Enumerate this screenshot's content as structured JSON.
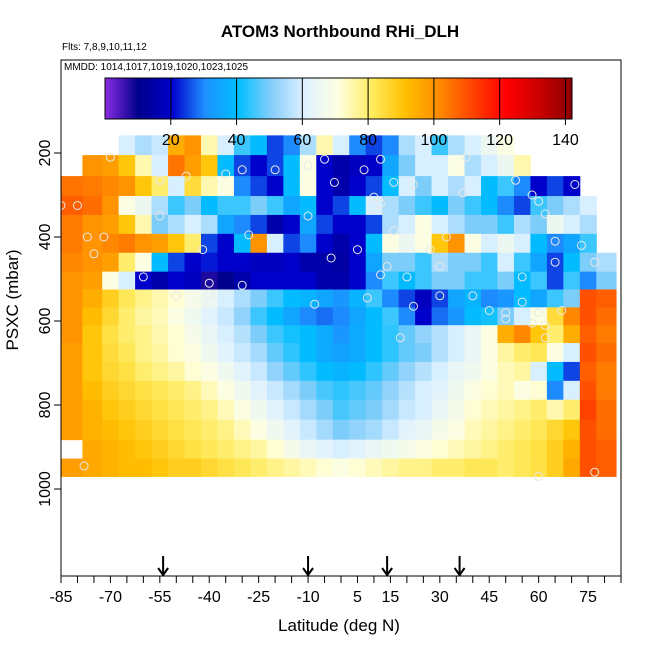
{
  "figure": {
    "title": "ATOM3 Northbound RHi_DLH",
    "flights_note": "Flts: 7,8,9,10,11,12",
    "dates_note": "MMDD: 1014,1017,1019,1020,1023,1025"
  },
  "chart_data": {
    "type": "heatmap",
    "title": "ATOM3 Northbound RHi_DLH",
    "xlabel": "Latitude (deg N)",
    "ylabel": "PSXC (mbar)",
    "x_ticks": [
      "-85",
      "-70",
      "-55",
      "-40",
      "-25",
      "-10",
      "5",
      "15",
      "30",
      "45",
      "60",
      "75"
    ],
    "y_ticks": [
      "200",
      "400",
      "600",
      "800",
      "1000"
    ],
    "xlim": [
      -85,
      85
    ],
    "ylim": [
      1000,
      0
    ],
    "y_reversed": true,
    "colorbar": {
      "ticks": [
        "20",
        "40",
        "60",
        "80",
        "100",
        "120",
        "140"
      ],
      "range": [
        0,
        142
      ],
      "colors": [
        "#8a2be2",
        "#00008b",
        "#0000cd",
        "#1e90ff",
        "#00bfff",
        "#87cefa",
        "#e0f2ff",
        "#ffffe0",
        "#ffec60",
        "#ffc000",
        "#ff8c00",
        "#ff4500",
        "#ff0000",
        "#cc0000",
        "#8b0000"
      ]
    },
    "arrow_latitudes": [
      -54,
      -10,
      14,
      36
    ],
    "pressure_levels": [
      180,
      230,
      280,
      325,
      370,
      415,
      460,
      505,
      545,
      590,
      630,
      675,
      720,
      765,
      810,
      860,
      905,
      950
    ],
    "latitudes": [
      -82,
      -75,
      -70,
      -65,
      -60,
      -55,
      -50,
      -45,
      -40,
      -35,
      -30,
      -25,
      -20,
      -15,
      -10,
      -5,
      0,
      5,
      10,
      15,
      20,
      25,
      30,
      35,
      40,
      45,
      50,
      55,
      60,
      65,
      70,
      75,
      80
    ],
    "rhi_matrix": [
      [
        null,
        null,
        null,
        60,
        55,
        58,
        95,
        100,
        75,
        60,
        45,
        40,
        25,
        30,
        55,
        75,
        60,
        30,
        25,
        30,
        55,
        60,
        45,
        55,
        60,
        65,
        70,
        null,
        null,
        null,
        null,
        null,
        null
      ],
      [
        null,
        100,
        98,
        90,
        75,
        60,
        105,
        98,
        90,
        40,
        25,
        20,
        25,
        40,
        70,
        20,
        15,
        18,
        20,
        35,
        50,
        60,
        60,
        70,
        55,
        60,
        65,
        75,
        null,
        null,
        null,
        null,
        null
      ],
      [
        105,
        104,
        102,
        100,
        90,
        80,
        60,
        85,
        75,
        70,
        30,
        25,
        20,
        40,
        70,
        20,
        15,
        20,
        25,
        40,
        60,
        50,
        60,
        55,
        60,
        40,
        45,
        30,
        20,
        25,
        20,
        null,
        null
      ],
      [
        108,
        106,
        100,
        70,
        65,
        55,
        45,
        50,
        40,
        45,
        45,
        50,
        45,
        35,
        40,
        20,
        25,
        40,
        60,
        55,
        50,
        45,
        40,
        50,
        45,
        40,
        30,
        25,
        45,
        50,
        55,
        60,
        null
      ],
      [
        104,
        100,
        98,
        90,
        75,
        50,
        55,
        60,
        55,
        35,
        30,
        25,
        15,
        20,
        35,
        25,
        20,
        20,
        25,
        55,
        60,
        70,
        60,
        55,
        50,
        50,
        45,
        55,
        50,
        65,
        60,
        55,
        null
      ],
      [
        104,
        100,
        102,
        104,
        100,
        98,
        90,
        80,
        25,
        20,
        40,
        100,
        60,
        25,
        30,
        20,
        15,
        20,
        40,
        70,
        65,
        70,
        90,
        100,
        70,
        60,
        65,
        60,
        40,
        30,
        35,
        45,
        null
      ],
      [
        102,
        100,
        98,
        80,
        70,
        40,
        25,
        20,
        22,
        20,
        20,
        18,
        18,
        20,
        15,
        15,
        14,
        20,
        35,
        50,
        50,
        45,
        55,
        50,
        50,
        45,
        60,
        45,
        35,
        25,
        40,
        50,
        55
      ],
      [
        100,
        98,
        70,
        60,
        20,
        15,
        20,
        18,
        8,
        10,
        15,
        20,
        20,
        20,
        20,
        15,
        15,
        20,
        30,
        45,
        40,
        45,
        50,
        50,
        45,
        45,
        50,
        40,
        45,
        25,
        45,
        30,
        50
      ],
      [
        100,
        95,
        88,
        82,
        78,
        75,
        72,
        68,
        65,
        60,
        55,
        50,
        45,
        40,
        38,
        35,
        32,
        38,
        45,
        30,
        25,
        18,
        25,
        35,
        38,
        30,
        32,
        40,
        35,
        45,
        50,
        110,
        108
      ],
      [
        100,
        92,
        86,
        80,
        76,
        74,
        70,
        66,
        62,
        58,
        52,
        45,
        40,
        35,
        30,
        28,
        30,
        35,
        40,
        45,
        30,
        20,
        28,
        32,
        40,
        42,
        50,
        60,
        70,
        85,
        102,
        110,
        106
      ],
      [
        100,
        90,
        84,
        80,
        78,
        75,
        72,
        68,
        64,
        60,
        56,
        50,
        45,
        42,
        40,
        36,
        32,
        36,
        40,
        44,
        48,
        52,
        56,
        60,
        64,
        70,
        95,
        102,
        90,
        80,
        95,
        108,
        104
      ],
      [
        98,
        90,
        85,
        82,
        78,
        76,
        72,
        70,
        66,
        62,
        58,
        54,
        48,
        44,
        40,
        36,
        34,
        36,
        40,
        44,
        48,
        50,
        56,
        60,
        64,
        70,
        76,
        80,
        82,
        70,
        60,
        110,
        106
      ],
      [
        98,
        90,
        86,
        84,
        80,
        78,
        76,
        72,
        70,
        66,
        62,
        58,
        52,
        48,
        44,
        40,
        38,
        40,
        44,
        48,
        52,
        56,
        60,
        64,
        66,
        70,
        74,
        76,
        60,
        40,
        25,
        108,
        104
      ],
      [
        98,
        92,
        88,
        86,
        84,
        82,
        80,
        78,
        74,
        70,
        66,
        62,
        58,
        54,
        50,
        46,
        44,
        46,
        48,
        52,
        56,
        60,
        62,
        66,
        70,
        72,
        74,
        70,
        72,
        30,
        60,
        110,
        104
      ],
      [
        98,
        94,
        90,
        88,
        86,
        84,
        82,
        80,
        78,
        74,
        70,
        66,
        62,
        58,
        54,
        50,
        46,
        48,
        50,
        54,
        58,
        60,
        64,
        68,
        72,
        74,
        76,
        78,
        80,
        75,
        80,
        112,
        106
      ],
      [
        98,
        94,
        92,
        90,
        88,
        86,
        84,
        82,
        80,
        78,
        74,
        70,
        66,
        62,
        58,
        54,
        50,
        52,
        54,
        58,
        62,
        64,
        68,
        70,
        74,
        76,
        78,
        80,
        82,
        86,
        90,
        110,
        106
      ],
      [
        null,
        96,
        94,
        92,
        90,
        88,
        86,
        84,
        82,
        80,
        78,
        76,
        72,
        68,
        64,
        62,
        60,
        62,
        64,
        66,
        68,
        70,
        72,
        74,
        76,
        78,
        80,
        82,
        84,
        88,
        94,
        110,
        108
      ],
      [
        98,
        96,
        94,
        92,
        92,
        90,
        88,
        88,
        86,
        84,
        82,
        80,
        78,
        76,
        74,
        72,
        70,
        72,
        74,
        76,
        78,
        78,
        80,
        80,
        82,
        82,
        80,
        82,
        84,
        88,
        96,
        110,
        108
      ]
    ],
    "sample_points": [
      {
        "lat": -70,
        "p": 210
      },
      {
        "lat": -55,
        "p": 265
      },
      {
        "lat": -47,
        "p": 255
      },
      {
        "lat": -35,
        "p": 250
      },
      {
        "lat": -30,
        "p": 240
      },
      {
        "lat": -20,
        "p": 240
      },
      {
        "lat": -10,
        "p": 230
      },
      {
        "lat": -5,
        "p": 215
      },
      {
        "lat": 7,
        "p": 240
      },
      {
        "lat": 12,
        "p": 215
      },
      {
        "lat": 38,
        "p": 210
      },
      {
        "lat": 10,
        "p": 305
      },
      {
        "lat": -2,
        "p": 270
      },
      {
        "lat": 16,
        "p": 270
      },
      {
        "lat": 22,
        "p": 275
      },
      {
        "lat": 37,
        "p": 295
      },
      {
        "lat": 53,
        "p": 265
      },
      {
        "lat": 58,
        "p": 300
      },
      {
        "lat": 71,
        "p": 275
      },
      {
        "lat": -85,
        "p": 325
      },
      {
        "lat": -80,
        "p": 325
      },
      {
        "lat": -55,
        "p": 350
      },
      {
        "lat": -10,
        "p": 350
      },
      {
        "lat": 12,
        "p": 320
      },
      {
        "lat": 16,
        "p": 385
      },
      {
        "lat": 32,
        "p": 400
      },
      {
        "lat": 60,
        "p": 315
      },
      {
        "lat": 62,
        "p": 345
      },
      {
        "lat": -77,
        "p": 400
      },
      {
        "lat": -72,
        "p": 400
      },
      {
        "lat": -28,
        "p": 395
      },
      {
        "lat": -42,
        "p": 430
      },
      {
        "lat": 5,
        "p": 430
      },
      {
        "lat": 27,
        "p": 430
      },
      {
        "lat": 65,
        "p": 410
      },
      {
        "lat": 73,
        "p": 420
      },
      {
        "lat": -75,
        "p": 440
      },
      {
        "lat": -3,
        "p": 450
      },
      {
        "lat": 14,
        "p": 470
      },
      {
        "lat": 30,
        "p": 470
      },
      {
        "lat": -60,
        "p": 495
      },
      {
        "lat": -40,
        "p": 510
      },
      {
        "lat": -30,
        "p": 515
      },
      {
        "lat": 12,
        "p": 490
      },
      {
        "lat": 20,
        "p": 495
      },
      {
        "lat": 55,
        "p": 495
      },
      {
        "lat": 65,
        "p": 460
      },
      {
        "lat": 77,
        "p": 460
      },
      {
        "lat": -50,
        "p": 540
      },
      {
        "lat": -40,
        "p": 535
      },
      {
        "lat": 8,
        "p": 545
      },
      {
        "lat": 30,
        "p": 540
      },
      {
        "lat": 40,
        "p": 540
      },
      {
        "lat": 55,
        "p": 555
      },
      {
        "lat": -8,
        "p": 560
      },
      {
        "lat": 22,
        "p": 565
      },
      {
        "lat": 45,
        "p": 575
      },
      {
        "lat": 50,
        "p": 580
      },
      {
        "lat": 60,
        "p": 580
      },
      {
        "lat": 67,
        "p": 575
      },
      {
        "lat": 50,
        "p": 595
      },
      {
        "lat": 58,
        "p": 605
      },
      {
        "lat": 62,
        "p": 610
      },
      {
        "lat": 18,
        "p": 640
      },
      {
        "lat": 62,
        "p": 640
      },
      {
        "lat": -78,
        "p": 945
      },
      {
        "lat": 60,
        "p": 970
      },
      {
        "lat": 77,
        "p": 960
      }
    ]
  }
}
